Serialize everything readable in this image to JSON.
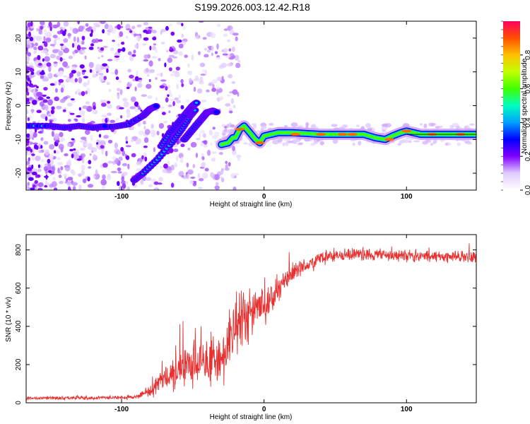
{
  "title": "S199.2026.003.12.42.R18",
  "chart_data": [
    {
      "type": "heatmap",
      "name": "spectrogram",
      "xlabel": "Height of straight line (km)",
      "ylabel": "Frequency (Hz)",
      "xlim": [
        -167,
        149
      ],
      "ylim": [
        -25,
        25
      ],
      "xticks": [
        -100,
        0,
        100
      ],
      "yticks": [
        -20,
        -10,
        0,
        10,
        20
      ],
      "colorbar": {
        "label": "Normalized spectral amplitude",
        "range": [
          0,
          1
        ],
        "ticks": [
          "0.0",
          "0.2",
          "0.4",
          "0.6",
          "0.8"
        ],
        "colors": [
          "#ffffff",
          "#b48cff",
          "#6a00ff",
          "#0000ff",
          "#00c8ff",
          "#00ff80",
          "#c8ff00",
          "#ffd000",
          "#ff6a00",
          "#ff0040"
        ]
      },
      "ridges": [
        {
          "name": "main-tone",
          "points": [
            [
              -30,
              -11.5
            ],
            [
              -25,
              -11
            ],
            [
              -22,
              -9.5
            ],
            [
              -20,
              -9.5
            ],
            [
              -17,
              -7
            ],
            [
              -14,
              -6
            ],
            [
              -10,
              -8
            ],
            [
              -6,
              -10
            ],
            [
              -3,
              -11
            ],
            [
              0,
              -9
            ],
            [
              5,
              -8.5
            ],
            [
              10,
              -8
            ],
            [
              20,
              -8
            ],
            [
              40,
              -8.5
            ],
            [
              60,
              -8.5
            ],
            [
              70,
              -8.5
            ],
            [
              78,
              -9.5
            ],
            [
              85,
              -10
            ],
            [
              90,
              -9
            ],
            [
              96,
              -8
            ],
            [
              100,
              -7.5
            ],
            [
              110,
              -8.5
            ],
            [
              130,
              -8.5
            ],
            [
              149,
              -8.5
            ]
          ]
        },
        {
          "name": "branch-1",
          "points": [
            [
              -91,
              -22
            ],
            [
              -85,
              -20
            ],
            [
              -75,
              -16
            ],
            [
              -65,
              -11
            ],
            [
              -58,
              -7
            ],
            [
              -52,
              -3
            ],
            [
              -48,
              -1
            ]
          ]
        },
        {
          "name": "branch-2",
          "points": [
            [
              -72,
              -12
            ],
            [
              -66,
              -8
            ],
            [
              -60,
              -5
            ],
            [
              -54,
              -2
            ],
            [
              -50,
              0
            ],
            [
              -47,
              1
            ]
          ]
        },
        {
          "name": "branch-3",
          "points": [
            [
              -56,
              -10
            ],
            [
              -50,
              -7
            ],
            [
              -44,
              -4
            ],
            [
              -40,
              -2
            ],
            [
              -36,
              -1.5
            ],
            [
              -33,
              -2
            ]
          ]
        },
        {
          "name": "branch-4",
          "points": [
            [
              -120,
              -6.5
            ],
            [
              -105,
              -6.2
            ],
            [
              -95,
              -5.5
            ],
            [
              -85,
              -3
            ],
            [
              -80,
              -1
            ],
            [
              -75,
              0
            ]
          ]
        },
        {
          "name": "low-band",
          "points": [
            [
              -167,
              -6
            ],
            [
              -150,
              -6
            ],
            [
              -140,
              -6.5
            ],
            [
              -130,
              -6
            ],
            [
              -120,
              -6.5
            ],
            [
              -110,
              -6
            ]
          ]
        }
      ]
    },
    {
      "type": "line",
      "name": "snr",
      "xlabel": "Height of straight line (km)",
      "ylabel": "SNR (10 * v/v)",
      "xlim": [
        -167,
        149
      ],
      "ylim": [
        0,
        880
      ],
      "xticks": [
        -100,
        0,
        100
      ],
      "yticks": [
        0,
        200,
        400,
        600,
        800
      ],
      "color": "#e83030",
      "envelope": [
        [
          -167,
          25
        ],
        [
          -120,
          25
        ],
        [
          -90,
          30
        ],
        [
          -80,
          60
        ],
        [
          -70,
          120
        ],
        [
          -60,
          170
        ],
        [
          -50,
          200
        ],
        [
          -40,
          220
        ],
        [
          -30,
          240
        ],
        [
          -25,
          300
        ],
        [
          -20,
          400
        ],
        [
          -15,
          430
        ],
        [
          -10,
          480
        ],
        [
          -5,
          500
        ],
        [
          0,
          510
        ],
        [
          5,
          540
        ],
        [
          10,
          600
        ],
        [
          15,
          640
        ],
        [
          20,
          680
        ],
        [
          25,
          700
        ],
        [
          30,
          720
        ],
        [
          40,
          760
        ],
        [
          60,
          775
        ],
        [
          80,
          775
        ],
        [
          100,
          770
        ],
        [
          120,
          765
        ],
        [
          149,
          765
        ]
      ],
      "noise": [
        [
          -167,
          10
        ],
        [
          -90,
          12
        ],
        [
          -80,
          40
        ],
        [
          -60,
          120
        ],
        [
          -50,
          150
        ],
        [
          -30,
          150
        ],
        [
          -20,
          200
        ],
        [
          -10,
          180
        ],
        [
          0,
          120
        ],
        [
          10,
          90
        ],
        [
          20,
          60
        ],
        [
          40,
          40
        ],
        [
          149,
          35
        ]
      ]
    }
  ]
}
